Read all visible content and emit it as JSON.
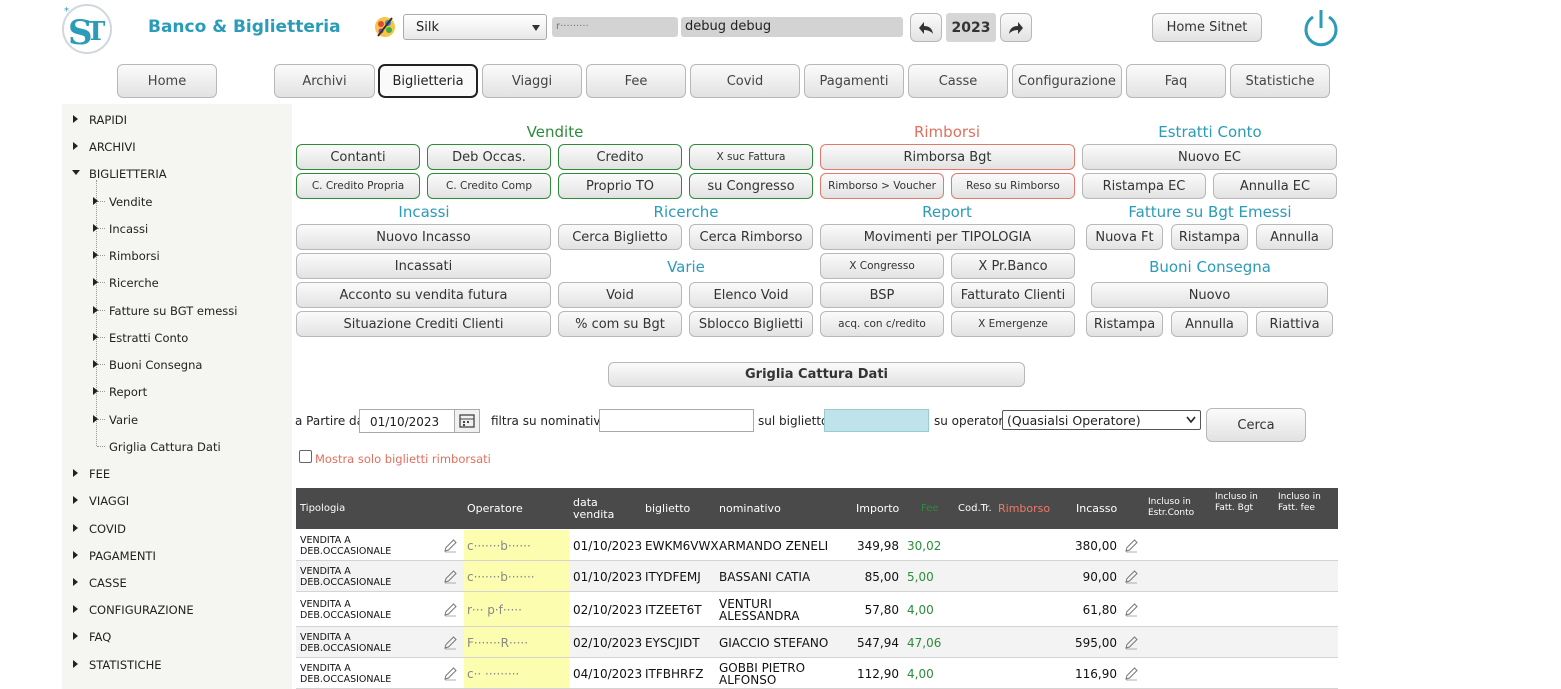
{
  "header": {
    "app_title": "Banco & Biglietteria",
    "theme_select": "Silk",
    "user_field": "r·········",
    "debug_field": "debug debug",
    "year": "2023",
    "home_sitnet": "Home Sitnet"
  },
  "nav": [
    "Home",
    "Archivi",
    "Biglietteria",
    "Viaggi",
    "Fee",
    "Covid",
    "Pagamenti",
    "Casse",
    "Configurazione",
    "Faq",
    "Statistiche"
  ],
  "sections": {
    "vendite": "Vendite",
    "rimborsi": "Rimborsi",
    "estratti": "Estratti Conto",
    "incassi": "Incassi",
    "ricerche": "Ricerche",
    "report": "Report",
    "fatture": "Fatture su Bgt Emessi",
    "varie": "Varie",
    "buoni": "Buoni Consegna"
  },
  "buttons": {
    "contanti": "Contanti",
    "deb_occas": "Deb Occas.",
    "credito": "Credito",
    "x_suc_fattura": "X suc Fattura",
    "rimborsa_bgt": "Rimborsa Bgt",
    "nuovo_ec": "Nuovo EC",
    "c_credito_propria": "C. Credito Propria",
    "c_credito_comp": "C. Credito Comp",
    "proprio_to": "Proprio TO",
    "su_congresso": "su Congresso",
    "rimborso_voucher": "Rimborso > Voucher",
    "reso_su_rimborso": "Reso su Rimborso",
    "ristampa_ec": "Ristampa EC",
    "annulla_ec": "Annulla EC",
    "nuovo_incasso": "Nuovo Incasso",
    "cerca_biglietto": "Cerca Biglietto",
    "cerca_rimborso": "Cerca Rimborso",
    "movimenti_tipologia": "Movimenti per TIPOLOGIA",
    "nuova_ft": "Nuova Ft",
    "ristampa_ft": "Ristampa",
    "annulla_ft": "Annulla",
    "incassati": "Incassati",
    "x_congresso": "X Congresso",
    "x_prbanco": "X Pr.Banco",
    "acconto": "Acconto su vendita futura",
    "void": "Void",
    "elenco_void": "Elenco Void",
    "bsp": "BSP",
    "fatturato_clienti": "Fatturato Clienti",
    "nuovo_buono": "Nuovo",
    "situazione_crediti": "Situazione Crediti Clienti",
    "com_su_bgt": "% com su Bgt",
    "sblocco_biglietti": "Sblocco Biglietti",
    "acq_credito": "acq. con c/redito",
    "x_emergenze": "X Emergenze",
    "ristampa_buono": "Ristampa",
    "annulla_buono": "Annulla",
    "riattiva_buono": "Riattiva",
    "griglia": "Griglia Cattura Dati",
    "cerca": "Cerca"
  },
  "tree": {
    "top": [
      "RAPIDI",
      "ARCHIVI",
      "BIGLIETTERIA"
    ],
    "children": [
      "Vendite",
      "Incassi",
      "Rimborsi",
      "Ricerche",
      "Fatture su BGT emessi",
      "Estratti Conto",
      "Buoni Consegna",
      "Report",
      "Varie",
      "Griglia Cattura Dati"
    ],
    "bottom": [
      "FEE",
      "VIAGGI",
      "COVID",
      "PAGAMENTI",
      "CASSE",
      "CONFIGURAZIONE",
      "FAQ",
      "STATISTICHE"
    ]
  },
  "filters": {
    "a_partire_label": "a Partire dal",
    "date_value": "01/10/2023",
    "nominativo_label": "filtra su nominativo",
    "nominativo_value": "",
    "biglietto_label": "sul biglietto",
    "biglietto_value": "",
    "operatore_label": "su operatore",
    "operatore_value": "(Quasialsi Operatore)",
    "checkbox_label": "Mostra solo biglietti rimborsati"
  },
  "table": {
    "headers": {
      "tipologia": "Tipologia",
      "operatore": "Operatore",
      "data_vendita": "data vendita",
      "biglietto": "biglietto",
      "nominativo": "nominativo",
      "importo": "Importo",
      "fee": "Fee",
      "cod_tr": "Cod.Tr.",
      "rimborso": "Rimborso",
      "incasso": "Incasso",
      "incluso_estr": "Incluso in Estr.Conto",
      "incluso_bgt": "Incluso in Fatt. Bgt",
      "incluso_fee": "Incluso in Fatt. fee"
    },
    "rows": [
      {
        "tipologia": "VENDITA A DEB.OCCASIONALE",
        "operatore": "c·······b······",
        "data": "01/10/2023",
        "biglietto": "EWKM6VWX",
        "nominativo": "ARMANDO ZENELI",
        "importo": "349,98",
        "fee": "30,02",
        "incasso": "380,00"
      },
      {
        "tipologia": "VENDITA A DEB.OCCASIONALE",
        "operatore": "c·······b·······",
        "data": "01/10/2023",
        "biglietto": "ITYDFEMJ",
        "nominativo": "BASSANI CATIA",
        "importo": "85,00",
        "fee": "5,00",
        "incasso": "90,00"
      },
      {
        "tipologia": "VENDITA A DEB.OCCASIONALE",
        "operatore": "r··· p·f·····",
        "data": "02/10/2023",
        "biglietto": "ITZEET6T",
        "nominativo": "VENTURI ALESSANDRA",
        "importo": "57,80",
        "fee": "4,00",
        "incasso": "61,80"
      },
      {
        "tipologia": "VENDITA A DEB.OCCASIONALE",
        "operatore": "F·······R·····",
        "data": "02/10/2023",
        "biglietto": "EYSCJIDT",
        "nominativo": "GIACCIO STEFANO",
        "importo": "547,94",
        "fee": "47,06",
        "incasso": "595,00"
      },
      {
        "tipologia": "VENDITA A DEB.OCCASIONALE",
        "operatore": "c·· ·········",
        "data": "04/10/2023",
        "biglietto": "ITFBHRFZ",
        "nominativo": "GOBBI PIETRO ALFONSO",
        "importo": "112,90",
        "fee": "4,00",
        "incasso": "116,90"
      }
    ]
  },
  "colors": {
    "accent_teal": "#2a9bb8",
    "green": "#2e8b3a",
    "red": "#e0705e",
    "table_header": "#4a4a4a"
  }
}
